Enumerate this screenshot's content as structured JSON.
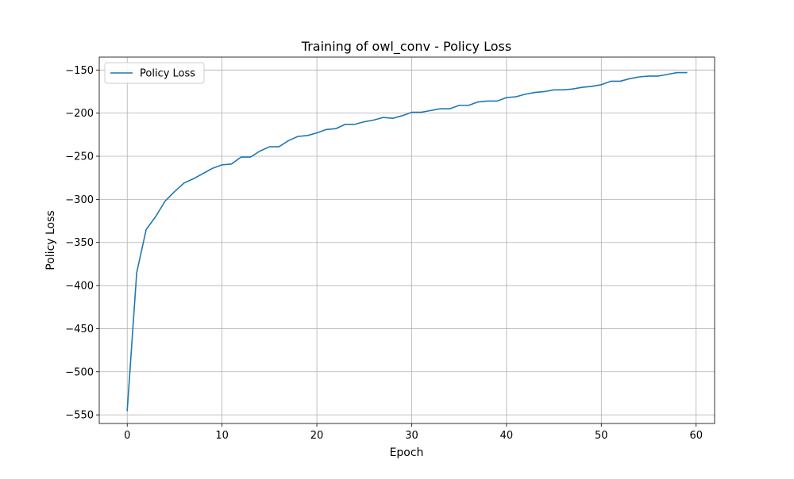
{
  "chart_data": {
    "type": "line",
    "title": "Training of owl_conv - Policy Loss",
    "xlabel": "Epoch",
    "ylabel": "Policy Loss",
    "xlim": [
      -2.95,
      61.95
    ],
    "ylim": [
      -560,
      -135
    ],
    "xticks": [
      0,
      10,
      20,
      30,
      40,
      50,
      60
    ],
    "yticks": [
      -550,
      -500,
      -450,
      -400,
      -350,
      -300,
      -250,
      -200,
      -150
    ],
    "grid": true,
    "legend_position": "top-left",
    "series": [
      {
        "name": "Policy Loss",
        "color": "#1f77b4",
        "x": [
          0,
          1,
          2,
          3,
          4,
          5,
          6,
          7,
          8,
          9,
          10,
          11,
          12,
          13,
          14,
          15,
          16,
          17,
          18,
          19,
          20,
          21,
          22,
          23,
          24,
          25,
          26,
          27,
          28,
          29,
          30,
          31,
          32,
          33,
          34,
          35,
          36,
          37,
          38,
          39,
          40,
          41,
          42,
          43,
          44,
          45,
          46,
          47,
          48,
          49,
          50,
          51,
          52,
          53,
          54,
          55,
          56,
          57,
          58,
          59
        ],
        "y": [
          -545,
          -385,
          -335,
          -320,
          -302,
          -291,
          -281,
          -276,
          -270,
          -264,
          -260,
          -259,
          -251,
          -251,
          -244,
          -239,
          -239,
          -232,
          -227,
          -226,
          -223,
          -219,
          -218,
          -213,
          -213,
          -210,
          -208,
          -205,
          -206,
          -203,
          -199,
          -199,
          -197,
          -195,
          -195,
          -191,
          -191,
          -187,
          -186,
          -186,
          -182,
          -181,
          -178,
          -176,
          -175,
          -173,
          -173,
          -172,
          -170,
          -169,
          -167,
          -163,
          -163,
          -160,
          -158,
          -157,
          -157,
          -155,
          -153,
          -153
        ]
      }
    ]
  }
}
